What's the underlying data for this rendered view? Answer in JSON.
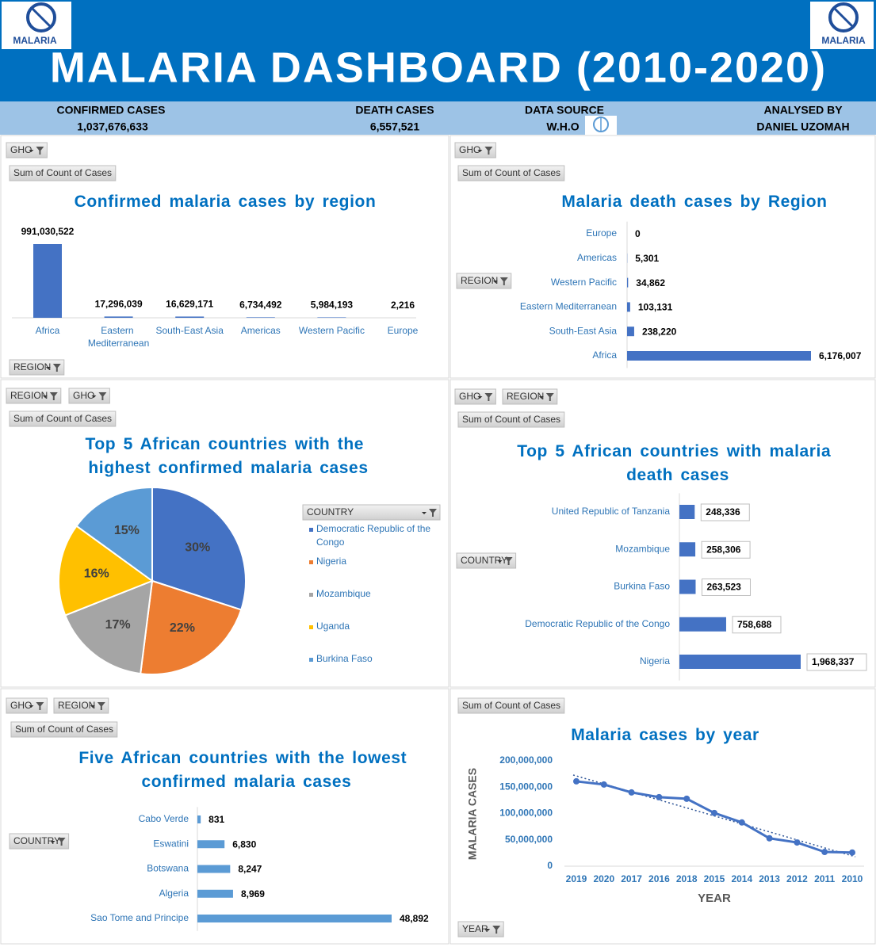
{
  "header": {
    "title": "MALARIA DASHBOARD (2010-2020)",
    "logo_text": "MALARIA",
    "stats": [
      {
        "label": "CONFIRMED CASES",
        "value": "1,037,676,633"
      },
      {
        "label": "DEATH CASES",
        "value": "6,557,521"
      },
      {
        "label": "DATA SOURCE",
        "value": "W.H.O"
      },
      {
        "label": "ANALYSED BY",
        "value": "DANIEL UZOMAH"
      }
    ]
  },
  "chart_data": [
    {
      "type": "bar",
      "title": "Confirmed malaria cases by region",
      "buttons": [
        "GHO",
        "Sum of Count of Cases",
        "REGION"
      ],
      "color": "#4472c4",
      "categories": [
        "Africa",
        "Eastern Mediterranean",
        "South-East Asia",
        "Americas",
        "Western Pacific",
        "Europe"
      ],
      "values": [
        991030522,
        17296039,
        16629171,
        6734492,
        5984193,
        2216
      ],
      "value_labels": [
        "991,030,522",
        "17,296,039",
        "16,629,171",
        "6,734,492",
        "5,984,193",
        "2,216"
      ]
    },
    {
      "type": "hbar",
      "title": "Malaria death cases by Region",
      "buttons": [
        "GHO",
        "Sum of Count of Cases",
        "REGION"
      ],
      "color": "#4472c4",
      "categories": [
        "Europe",
        "Americas",
        "Western Pacific",
        "Eastern Mediterranean",
        "South-East Asia",
        "Africa"
      ],
      "values": [
        0,
        5301,
        34862,
        103131,
        238220,
        6176007
      ],
      "value_labels": [
        "0",
        "5,301",
        "34,862",
        "103,131",
        "238,220",
        "6,176,007"
      ]
    },
    {
      "type": "pie",
      "title": "Top 5 African countries with the highest confirmed malaria cases",
      "buttons": [
        "REGION",
        "GHO",
        "Sum of Count of Cases"
      ],
      "legend_title": "COUNTRY",
      "categories": [
        "Democratic Republic of the Congo",
        "Nigeria",
        "Mozambique",
        "Uganda",
        "Burkina Faso"
      ],
      "values": [
        30,
        22,
        17,
        16,
        15
      ],
      "value_labels": [
        "30%",
        "22%",
        "17%",
        "16%",
        "15%"
      ],
      "colors": [
        "#4472c4",
        "#ed7d31",
        "#a5a5a5",
        "#ffc000",
        "#5b9bd5"
      ]
    },
    {
      "type": "hbar",
      "title": "Top 5 African countries with malaria death cases",
      "buttons": [
        "GHO",
        "REGION",
        "Sum of Count of Cases",
        "COUNTRY"
      ],
      "color": "#4472c4",
      "categories": [
        "United Republic of Tanzania",
        "Mozambique",
        "Burkina Faso",
        "Democratic Republic of the Congo",
        "Nigeria"
      ],
      "values": [
        248336,
        258306,
        263523,
        758688,
        1968337
      ],
      "value_labels": [
        "248,336",
        "258,306",
        "263,523",
        "758,688",
        "1,968,337"
      ]
    },
    {
      "type": "hbar",
      "title": "Five African countries with the lowest confirmed malaria cases",
      "buttons": [
        "GHO",
        "REGION",
        "Sum of Count of Cases",
        "COUNTRY"
      ],
      "color": "#5b9bd5",
      "categories": [
        "Cabo Verde",
        "Eswatini",
        "Botswana",
        "Algeria",
        "Sao Tome and Principe"
      ],
      "values": [
        831,
        6830,
        8247,
        8969,
        48892
      ],
      "value_labels": [
        "831",
        "6,830",
        "8,247",
        "8,969",
        "48,892"
      ]
    },
    {
      "type": "line",
      "title": "Malaria cases by year",
      "buttons": [
        "Sum of Count of Cases",
        "YEAR"
      ],
      "color": "#4472c4",
      "trendline": true,
      "xlabel": "YEAR",
      "ylabel": "MALARIA CASES",
      "categories": [
        "2019",
        "2020",
        "2017",
        "2016",
        "2018",
        "2015",
        "2014",
        "2013",
        "2012",
        "2011",
        "2010"
      ],
      "values": [
        161000000,
        155000000,
        140000000,
        131000000,
        128000000,
        101000000,
        83000000,
        53000000,
        45000000,
        27000000,
        26000000
      ],
      "ylim": [
        0,
        200000000
      ],
      "yticks": [
        0,
        {
          "value": 50000000,
          "label": "50,000,000"
        },
        {
          "value": 100000000,
          "label": "100,000,000"
        },
        {
          "value": 150000000,
          "label": "150,000,000"
        },
        {
          "value": 200000000,
          "label": "200,000,000"
        }
      ]
    }
  ]
}
